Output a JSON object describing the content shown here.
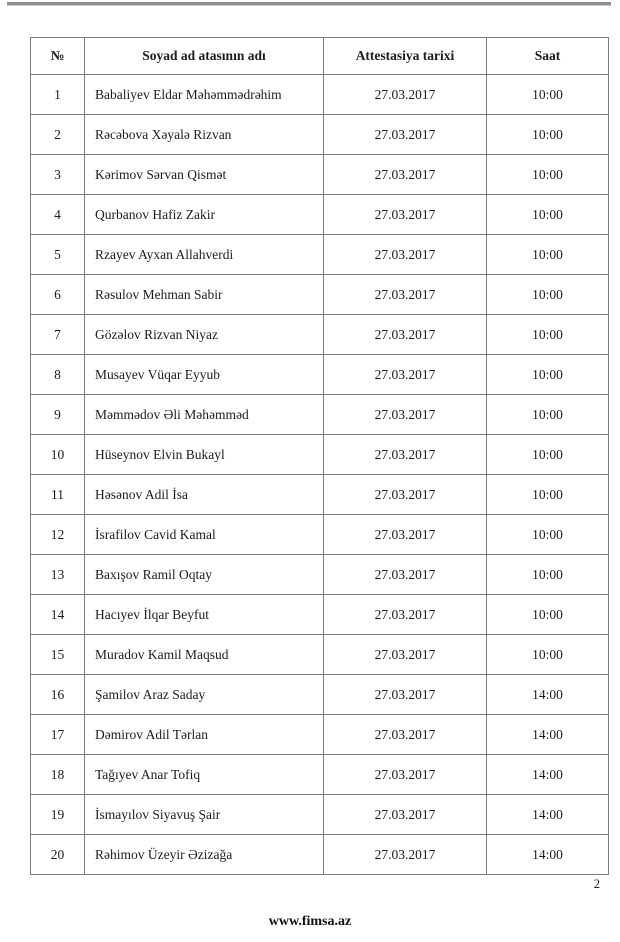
{
  "page": {
    "number": "2",
    "footer_url": "www.fimsa.az"
  },
  "table": {
    "headers": {
      "num": "№",
      "name": "Soyad ad atasının adı",
      "date": "Attestasiya tarixi",
      "time": "Saat"
    },
    "rows": [
      {
        "num": "1",
        "name": "Babaliyev Eldar Məhəmmədrəhim",
        "date": "27.03.2017",
        "time": "10:00"
      },
      {
        "num": "2",
        "name": "Rəcəbova Xəyalə Rizvan",
        "date": "27.03.2017",
        "time": "10:00"
      },
      {
        "num": "3",
        "name": "Kərimov Sərvan Qismət",
        "date": "27.03.2017",
        "time": "10:00"
      },
      {
        "num": "4",
        "name": "Qurbanov Hafiz Zakir",
        "date": "27.03.2017",
        "time": "10:00"
      },
      {
        "num": "5",
        "name": "Rzayev Ayxan Allahverdi",
        "date": "27.03.2017",
        "time": "10:00"
      },
      {
        "num": "6",
        "name": "Rəsulov Mehman Sabir",
        "date": "27.03.2017",
        "time": "10:00"
      },
      {
        "num": "7",
        "name": "Gözəlov Rizvan Niyaz",
        "date": "27.03.2017",
        "time": "10:00"
      },
      {
        "num": "8",
        "name": "Musayev Vüqar Eyyub",
        "date": "27.03.2017",
        "time": "10:00"
      },
      {
        "num": "9",
        "name": "Məmmədov Əli Məhəmməd",
        "date": "27.03.2017",
        "time": "10:00"
      },
      {
        "num": "10",
        "name": "Hüseynov Elvin Bukayl",
        "date": "27.03.2017",
        "time": "10:00"
      },
      {
        "num": "11",
        "name": "Həsənov Adil İsa",
        "date": "27.03.2017",
        "time": "10:00"
      },
      {
        "num": "12",
        "name": "İsrafilov Cavid Kamal",
        "date": "27.03.2017",
        "time": "10:00"
      },
      {
        "num": "13",
        "name": "Baxışov Ramil Oqtay",
        "date": "27.03.2017",
        "time": "10:00"
      },
      {
        "num": "14",
        "name": "Hacıyev İlqar Beyfut",
        "date": "27.03.2017",
        "time": "10:00"
      },
      {
        "num": "15",
        "name": "Muradov Kamil Maqsud",
        "date": "27.03.2017",
        "time": "10:00"
      },
      {
        "num": "16",
        "name": "Şamilov Araz Saday",
        "date": "27.03.2017",
        "time": "14:00"
      },
      {
        "num": "17",
        "name": "Dəmirov Adil Tərlan",
        "date": "27.03.2017",
        "time": "14:00"
      },
      {
        "num": "18",
        "name": "Tağıyev Anar Tofiq",
        "date": "27.03.2017",
        "time": "14:00"
      },
      {
        "num": "19",
        "name": "İsmayılov Siyavuş Şair",
        "date": "27.03.2017",
        "time": "14:00"
      },
      {
        "num": "20",
        "name": "Rəhimov Üzeyir Əzizağa",
        "date": "27.03.2017",
        "time": "14:00"
      }
    ]
  }
}
